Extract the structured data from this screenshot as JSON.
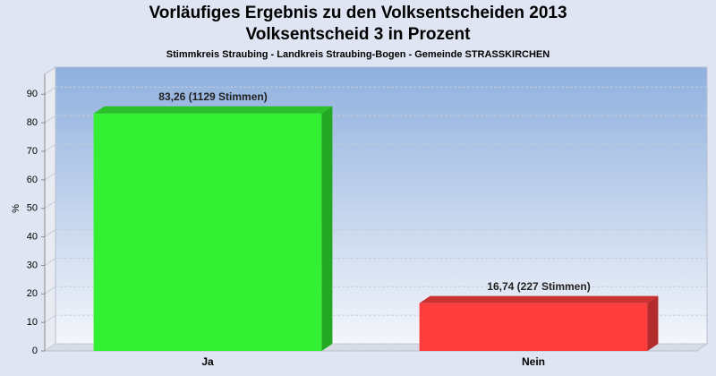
{
  "chart_data": {
    "type": "bar",
    "title": "Vorläufiges Ergebnis zu den Volksentscheiden 2013",
    "subtitle": "Volksentscheid 3 in Prozent",
    "caption": "Stimmkreis Straubing - Landkreis Straubing-Bogen - Gemeinde STRASSKIRCHEN",
    "y_label": "%",
    "categories": [
      "Ja",
      "Nein"
    ],
    "values": [
      83.26,
      16.74
    ],
    "value_labels": [
      "83,26 (1129 Stimmen)",
      "16,74 (227 Stimmen)"
    ],
    "colors": [
      "#33f033",
      "#ff3d3d"
    ],
    "ylim": [
      0,
      97
    ],
    "yticks": [
      0,
      10,
      20,
      30,
      40,
      50,
      60,
      70,
      80,
      90
    ],
    "grid": true
  }
}
